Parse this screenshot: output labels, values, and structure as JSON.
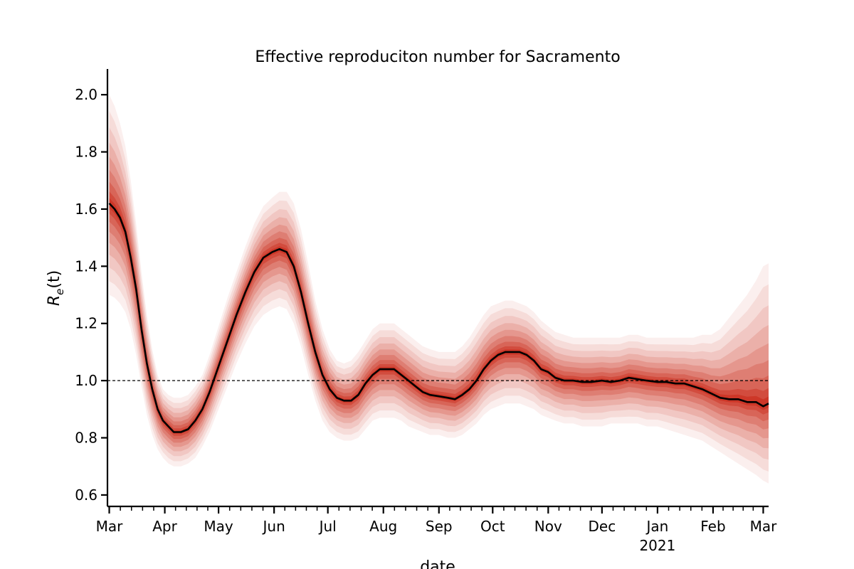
{
  "chart_data": {
    "type": "line",
    "title": "Effective reproduciton number for Sacramento",
    "xlabel": "date",
    "ylabel_base": "R",
    "ylabel_sub": "e",
    "ylabel_tail": "(t)",
    "x_tick_labels": [
      "Mar",
      "Apr",
      "May",
      "Jun",
      "Jul",
      "Aug",
      "Sep",
      "Oct",
      "Nov",
      "Dec",
      "Jan",
      "Feb",
      "Mar"
    ],
    "x_tick_dates": [
      "2020-03-01",
      "2020-04-01",
      "2020-05-01",
      "2020-06-01",
      "2020-07-01",
      "2020-08-01",
      "2020-09-01",
      "2020-10-01",
      "2020-11-01",
      "2020-12-01",
      "2021-01-01",
      "2021-02-01",
      "2021-03-01"
    ],
    "year_label": "2021",
    "y_ticks": [
      "0.6",
      "0.8",
      "1.0",
      "1.2",
      "1.4",
      "1.6",
      "1.8",
      "2.0"
    ],
    "xlim": [
      "2020-02-29",
      "2021-03-04"
    ],
    "ylim": [
      0.56,
      2.09
    ],
    "reference_line": 1.0,
    "grid": false,
    "colors": {
      "median": "#000000",
      "band": "#c8200e",
      "reference": "#000000"
    },
    "series": [
      {
        "points": [
          [
            "2020-03-01",
            1.62
          ],
          [
            "2020-03-04",
            1.6
          ],
          [
            "2020-03-07",
            1.57
          ],
          [
            "2020-03-10",
            1.52
          ],
          [
            "2020-03-13",
            1.43
          ],
          [
            "2020-03-16",
            1.32
          ],
          [
            "2020-03-19",
            1.18
          ],
          [
            "2020-03-22",
            1.06
          ],
          [
            "2020-03-25",
            0.97
          ],
          [
            "2020-03-28",
            0.9
          ],
          [
            "2020-03-31",
            0.86
          ],
          [
            "2020-04-03",
            0.84
          ],
          [
            "2020-04-06",
            0.82
          ],
          [
            "2020-04-10",
            0.82
          ],
          [
            "2020-04-14",
            0.83
          ],
          [
            "2020-04-18",
            0.86
          ],
          [
            "2020-04-22",
            0.9
          ],
          [
            "2020-04-26",
            0.96
          ],
          [
            "2020-05-01",
            1.05
          ],
          [
            "2020-05-06",
            1.14
          ],
          [
            "2020-05-11",
            1.23
          ],
          [
            "2020-05-16",
            1.31
          ],
          [
            "2020-05-21",
            1.38
          ],
          [
            "2020-05-26",
            1.43
          ],
          [
            "2020-05-31",
            1.45
          ],
          [
            "2020-06-04",
            1.46
          ],
          [
            "2020-06-08",
            1.45
          ],
          [
            "2020-06-12",
            1.4
          ],
          [
            "2020-06-16",
            1.31
          ],
          [
            "2020-06-20",
            1.2
          ],
          [
            "2020-06-24",
            1.1
          ],
          [
            "2020-06-28",
            1.02
          ],
          [
            "2020-07-02",
            0.97
          ],
          [
            "2020-07-06",
            0.94
          ],
          [
            "2020-07-10",
            0.93
          ],
          [
            "2020-07-14",
            0.93
          ],
          [
            "2020-07-18",
            0.95
          ],
          [
            "2020-07-22",
            0.99
          ],
          [
            "2020-07-26",
            1.02
          ],
          [
            "2020-07-30",
            1.04
          ],
          [
            "2020-08-03",
            1.04
          ],
          [
            "2020-08-07",
            1.04
          ],
          [
            "2020-08-11",
            1.02
          ],
          [
            "2020-08-15",
            1.0
          ],
          [
            "2020-08-19",
            0.98
          ],
          [
            "2020-08-23",
            0.96
          ],
          [
            "2020-08-27",
            0.95
          ],
          [
            "2020-09-01",
            0.945
          ],
          [
            "2020-09-06",
            0.94
          ],
          [
            "2020-09-10",
            0.935
          ],
          [
            "2020-09-14",
            0.95
          ],
          [
            "2020-09-18",
            0.97
          ],
          [
            "2020-09-22",
            1.0
          ],
          [
            "2020-09-26",
            1.04
          ],
          [
            "2020-09-30",
            1.07
          ],
          [
            "2020-10-04",
            1.09
          ],
          [
            "2020-10-08",
            1.1
          ],
          [
            "2020-10-12",
            1.1
          ],
          [
            "2020-10-16",
            1.1
          ],
          [
            "2020-10-20",
            1.09
          ],
          [
            "2020-10-24",
            1.07
          ],
          [
            "2020-10-28",
            1.04
          ],
          [
            "2020-11-01",
            1.03
          ],
          [
            "2020-11-05",
            1.01
          ],
          [
            "2020-11-10",
            1.0
          ],
          [
            "2020-11-15",
            1.0
          ],
          [
            "2020-11-20",
            0.995
          ],
          [
            "2020-11-25",
            0.995
          ],
          [
            "2020-12-01",
            1.0
          ],
          [
            "2020-12-06",
            0.995
          ],
          [
            "2020-12-11",
            1.0
          ],
          [
            "2020-12-16",
            1.01
          ],
          [
            "2020-12-21",
            1.005
          ],
          [
            "2020-12-26",
            1.0
          ],
          [
            "2021-01-01",
            0.995
          ],
          [
            "2021-01-06",
            0.995
          ],
          [
            "2021-01-11",
            0.99
          ],
          [
            "2021-01-16",
            0.99
          ],
          [
            "2021-01-21",
            0.98
          ],
          [
            "2021-01-26",
            0.97
          ],
          [
            "2021-01-31",
            0.955
          ],
          [
            "2021-02-05",
            0.94
          ],
          [
            "2021-02-10",
            0.935
          ],
          [
            "2021-02-15",
            0.935
          ],
          [
            "2021-02-20",
            0.925
          ],
          [
            "2021-02-25",
            0.925
          ],
          [
            "2021-03-01",
            0.91
          ],
          [
            "2021-03-04",
            0.92
          ]
        ],
        "upper": [
          2.0,
          1.96,
          1.9,
          1.82,
          1.7,
          1.55,
          1.38,
          1.23,
          1.11,
          1.02,
          0.97,
          0.95,
          0.94,
          0.94,
          0.95,
          0.98,
          1.02,
          1.09,
          1.19,
          1.29,
          1.38,
          1.47,
          1.55,
          1.61,
          1.64,
          1.66,
          1.66,
          1.62,
          1.53,
          1.41,
          1.28,
          1.18,
          1.11,
          1.07,
          1.06,
          1.07,
          1.1,
          1.14,
          1.18,
          1.2,
          1.2,
          1.2,
          1.18,
          1.16,
          1.14,
          1.12,
          1.11,
          1.1,
          1.1,
          1.1,
          1.12,
          1.15,
          1.19,
          1.23,
          1.26,
          1.27,
          1.28,
          1.28,
          1.27,
          1.26,
          1.24,
          1.21,
          1.19,
          1.17,
          1.16,
          1.15,
          1.15,
          1.15,
          1.15,
          1.15,
          1.15,
          1.16,
          1.16,
          1.15,
          1.15,
          1.15,
          1.15,
          1.15,
          1.15,
          1.16,
          1.16,
          1.18,
          1.22,
          1.26,
          1.3,
          1.35,
          1.4,
          1.41
        ],
        "lower": [
          1.3,
          1.29,
          1.27,
          1.24,
          1.18,
          1.09,
          0.98,
          0.88,
          0.81,
          0.76,
          0.73,
          0.71,
          0.7,
          0.7,
          0.71,
          0.73,
          0.77,
          0.82,
          0.9,
          0.98,
          1.06,
          1.13,
          1.19,
          1.23,
          1.25,
          1.26,
          1.25,
          1.2,
          1.12,
          1.02,
          0.93,
          0.86,
          0.82,
          0.8,
          0.79,
          0.79,
          0.8,
          0.83,
          0.86,
          0.87,
          0.87,
          0.87,
          0.86,
          0.84,
          0.83,
          0.82,
          0.81,
          0.81,
          0.8,
          0.8,
          0.81,
          0.83,
          0.85,
          0.88,
          0.9,
          0.91,
          0.92,
          0.92,
          0.92,
          0.91,
          0.9,
          0.88,
          0.87,
          0.86,
          0.85,
          0.85,
          0.84,
          0.84,
          0.84,
          0.85,
          0.85,
          0.85,
          0.85,
          0.84,
          0.84,
          0.83,
          0.82,
          0.81,
          0.8,
          0.79,
          0.77,
          0.75,
          0.73,
          0.71,
          0.69,
          0.67,
          0.65,
          0.64
        ]
      }
    ]
  }
}
